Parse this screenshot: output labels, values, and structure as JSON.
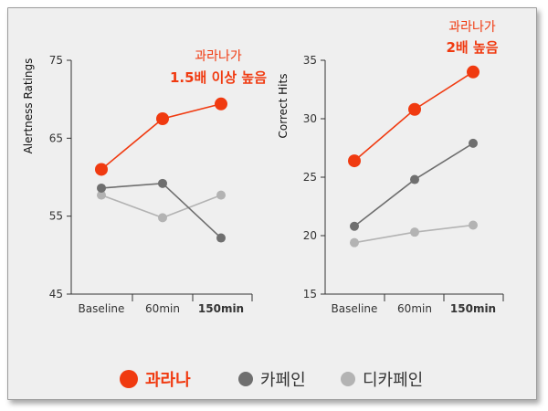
{
  "colors": {
    "highlight": "#f03a10",
    "dark_gray": "#6f6f6f",
    "light_gray": "#b3b3b3",
    "background": "#efefef"
  },
  "chart_data": [
    {
      "type": "line",
      "ylabel": "Alertness Ratings",
      "categories": [
        "Baseline",
        "60min",
        "150min"
      ],
      "highlight_category": "150min",
      "ylim": [
        45,
        75
      ],
      "yticks": [
        45,
        55,
        65,
        75
      ],
      "series": [
        {
          "name": "과라나",
          "values": [
            61,
            67.5,
            69.4
          ]
        },
        {
          "name": "카페인",
          "values": [
            58.6,
            59.2,
            52.2
          ]
        },
        {
          "name": "디카페인",
          "values": [
            57.7,
            54.8,
            57.7
          ]
        }
      ],
      "annotation": {
        "line1": "과라나가",
        "line2": "1.5배 이상 높음"
      }
    },
    {
      "type": "line",
      "ylabel": "Correct Hits",
      "categories": [
        "Baseline",
        "60min",
        "150min"
      ],
      "highlight_category": "150min",
      "ylim": [
        15,
        35
      ],
      "yticks": [
        15,
        20,
        25,
        30,
        35
      ],
      "series": [
        {
          "name": "과라나",
          "values": [
            26.4,
            30.8,
            34
          ]
        },
        {
          "name": "카페인",
          "values": [
            20.8,
            24.8,
            27.9
          ]
        },
        {
          "name": "디카페인",
          "values": [
            19.4,
            20.3,
            20.9
          ]
        }
      ],
      "annotation": {
        "line1": "과라나가",
        "line2": "2배 높음"
      }
    }
  ],
  "legend": [
    {
      "label": "과라나",
      "color": "#f03a10",
      "emphasis": true
    },
    {
      "label": "카페인",
      "color": "#6f6f6f",
      "emphasis": false
    },
    {
      "label": "디카페인",
      "color": "#b3b3b3",
      "emphasis": false
    }
  ]
}
